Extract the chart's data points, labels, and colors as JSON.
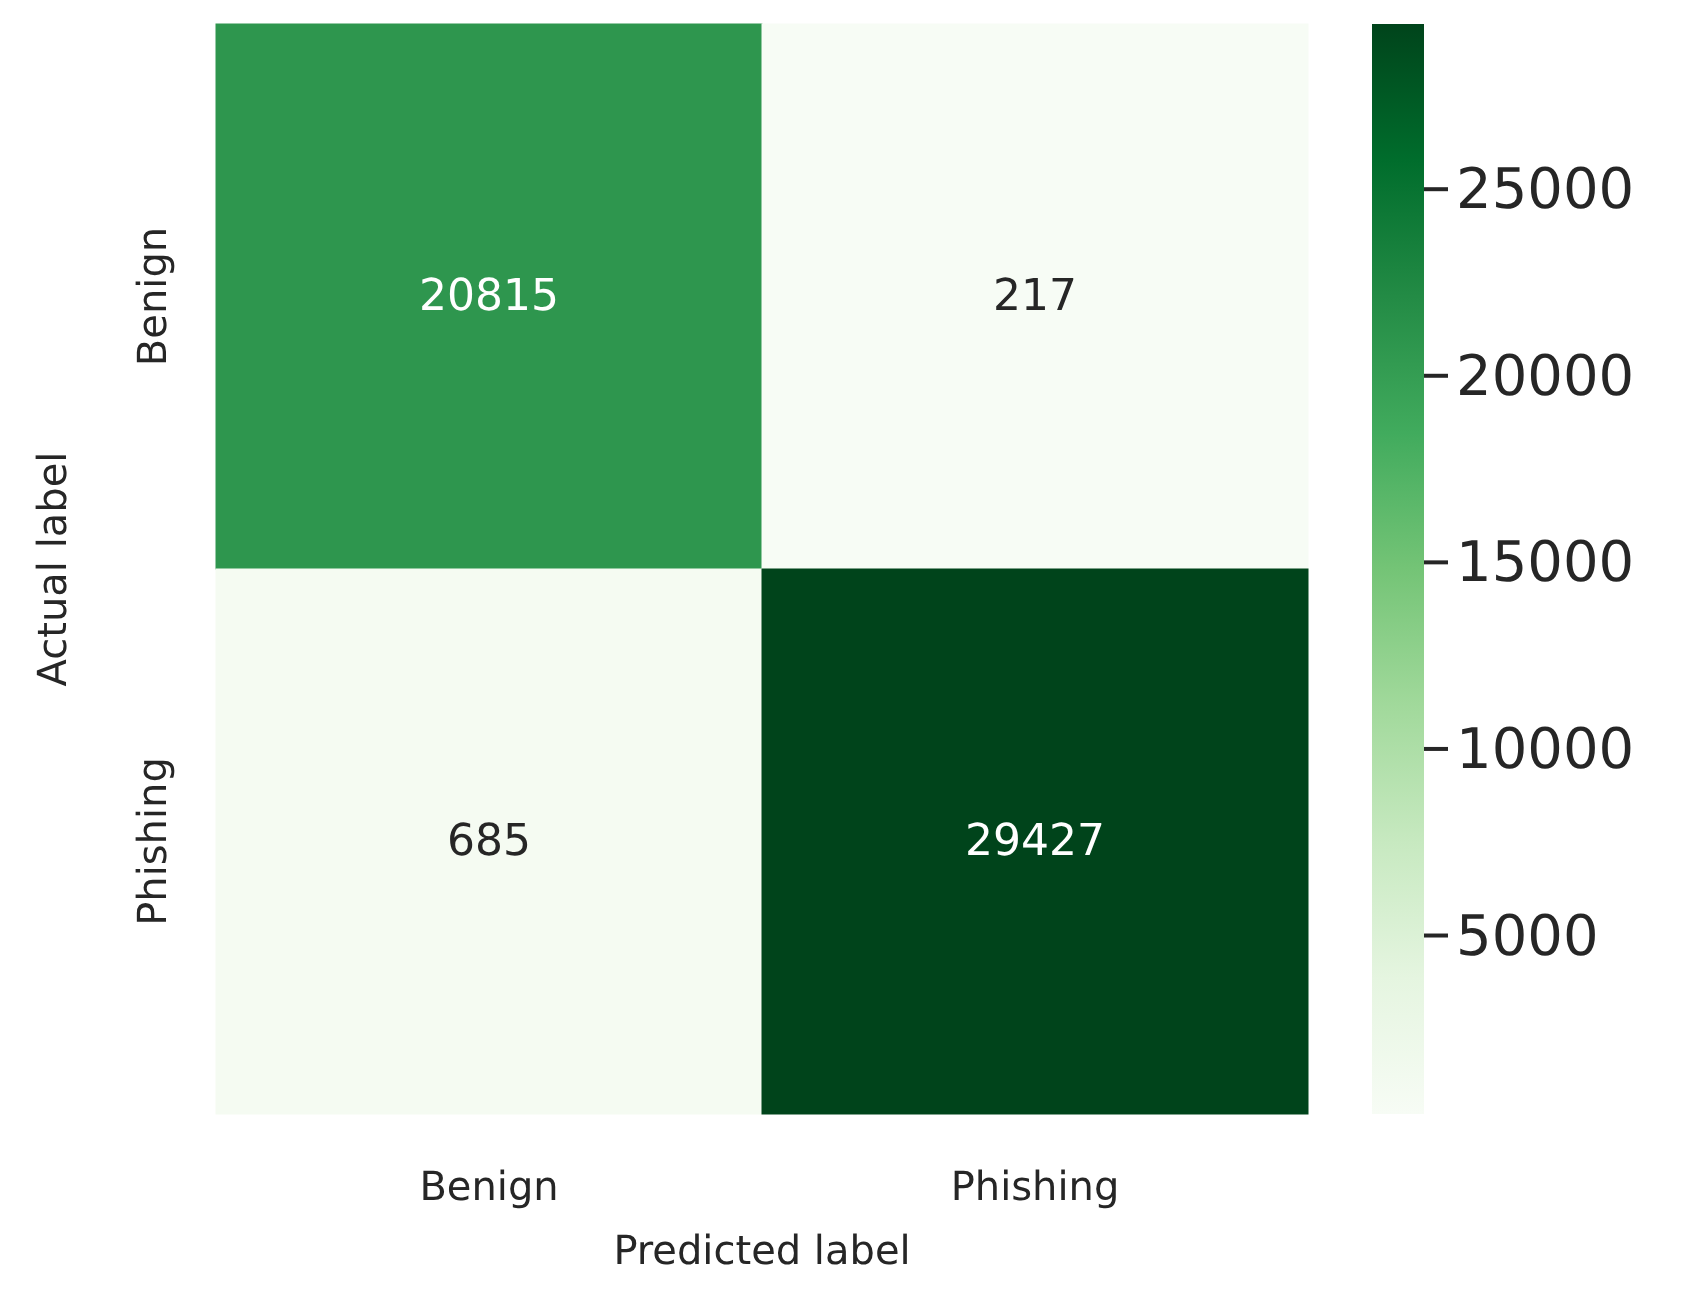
{
  "chart_data": {
    "type": "heatmap",
    "xlabel": "Predicted label",
    "ylabel": "Actual label",
    "categories": [
      "Benign",
      "Phishing"
    ],
    "y_categories": [
      "Benign",
      "Phishing"
    ],
    "cells": [
      [
        20815,
        217
      ],
      [
        685,
        29427
      ]
    ],
    "clim": [
      217,
      29427
    ],
    "cticks": [
      5000,
      10000,
      15000,
      20000,
      25000
    ],
    "colors": [
      "#f7fcf5",
      "#e5f5e0",
      "#c7e9c0",
      "#a1d99b",
      "#74c476",
      "#41ab5d",
      "#238b45",
      "#006d2c",
      "#00441b"
    ],
    "data_labels": true
  }
}
